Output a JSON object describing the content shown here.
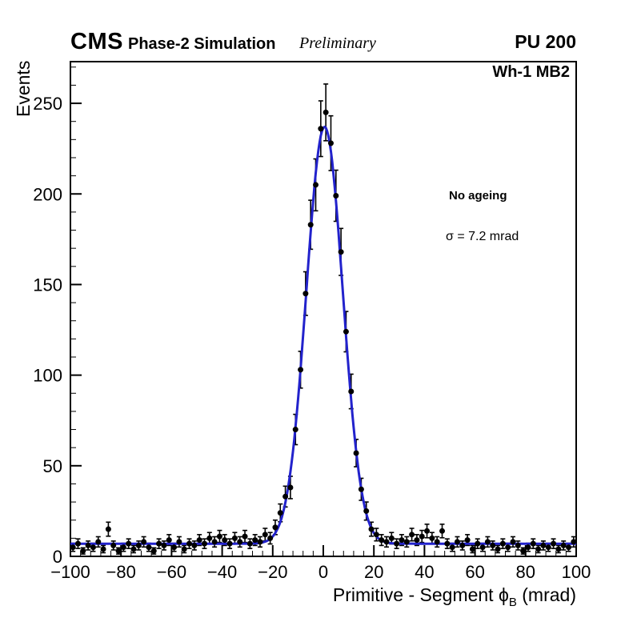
{
  "header": {
    "experiment": "CMS",
    "context": "Phase-2 Simulation",
    "qualifier": "Preliminary",
    "pileup": "PU 200"
  },
  "plot": {
    "region_label": "Wh-1 MB2",
    "legend": {
      "scenario": "No ageing",
      "resolution": "σ = 7.2 mrad"
    }
  },
  "chart_data": {
    "type": "scatter",
    "title": "",
    "ylabel": "Events",
    "xlabel": {
      "prefix": "Primitive - Segment ",
      "symbol": "ϕ",
      "subscript": "B",
      "suffix": " (mrad)"
    },
    "xlim": [
      -100,
      100
    ],
    "ylim": [
      0,
      273
    ],
    "xticks": [
      -100,
      -80,
      -60,
      -40,
      -20,
      0,
      20,
      40,
      60,
      80,
      100
    ],
    "yticks": [
      0,
      50,
      100,
      150,
      200,
      250
    ],
    "x_minor_step": 4,
    "y_minor_step": 10,
    "bin_width": 2,
    "grid": false,
    "legend_position": "right-center",
    "x": [
      -99,
      -97,
      -95,
      -93,
      -91,
      -89,
      -87,
      -85,
      -83,
      -81,
      -79,
      -77,
      -75,
      -73,
      -71,
      -69,
      -67,
      -65,
      -63,
      -61,
      -59,
      -57,
      -55,
      -53,
      -51,
      -49,
      -47,
      -45,
      -43,
      -41,
      -39,
      -37,
      -35,
      -33,
      -31,
      -29,
      -27,
      -25,
      -23,
      -21,
      -19,
      -17,
      -15,
      -13,
      -11,
      -9,
      -7,
      -5,
      -3,
      -1,
      1,
      3,
      5,
      7,
      9,
      11,
      13,
      15,
      17,
      19,
      21,
      23,
      25,
      27,
      29,
      31,
      33,
      35,
      37,
      39,
      41,
      43,
      45,
      47,
      49,
      51,
      53,
      55,
      57,
      59,
      61,
      63,
      65,
      67,
      69,
      71,
      73,
      75,
      77,
      79,
      81,
      83,
      85,
      87,
      89,
      91,
      93,
      95,
      97,
      99
    ],
    "y": [
      5,
      7,
      3,
      6,
      5,
      8,
      4,
      15,
      6,
      3,
      5,
      7,
      4,
      6,
      8,
      5,
      3,
      7,
      6,
      9,
      5,
      8,
      4,
      7,
      6,
      9,
      7,
      10,
      8,
      11,
      9,
      7,
      10,
      8,
      11,
      7,
      9,
      8,
      12,
      10,
      16,
      24,
      33,
      38,
      70,
      103,
      145,
      183,
      205,
      236,
      245,
      228,
      199,
      168,
      124,
      91,
      57,
      37,
      25,
      15,
      12,
      9,
      8,
      10,
      7,
      9,
      8,
      12,
      9,
      11,
      14,
      10,
      8,
      14,
      7,
      5,
      8,
      6,
      9,
      4,
      7,
      5,
      8,
      6,
      4,
      7,
      5,
      8,
      6,
      3,
      5,
      7,
      4,
      6,
      5,
      7,
      4,
      6,
      5,
      8
    ],
    "error_model": "sqrt(y)",
    "fit": {
      "type": "gaussian",
      "amplitude": 230,
      "mean": 0.5,
      "sigma": 7.2,
      "background": 7,
      "color": "#2222cc",
      "line_width": 3
    },
    "marker": {
      "shape": "circle",
      "color": "#000000",
      "radius": 3.5
    }
  }
}
